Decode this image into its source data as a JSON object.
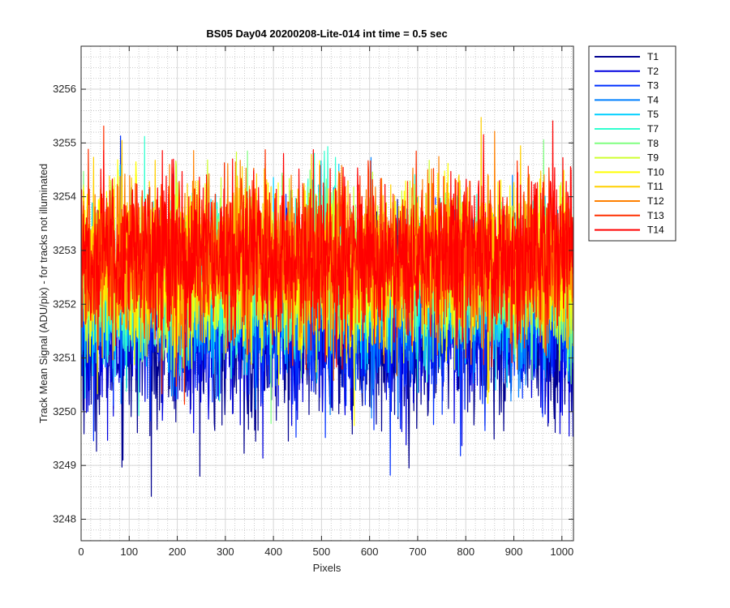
{
  "chart_data": {
    "type": "line",
    "title": "BS05 Day04 20200208-Lite-014 int time = 0.5 sec",
    "xlabel": "Pixels",
    "ylabel": "Track Mean Signal (ADU/pix) - for tracks not illuminated",
    "xlim": [
      0,
      1024
    ],
    "ylim": [
      3247.6,
      3256.8
    ],
    "xticks": [
      0,
      100,
      200,
      300,
      400,
      500,
      600,
      700,
      800,
      900,
      1000
    ],
    "yticks": [
      3248,
      3249,
      3250,
      3251,
      3252,
      3253,
      3254,
      3255,
      3256
    ],
    "grid": true,
    "minor_grid": true,
    "legend_position": "outside-top-right",
    "n_points_per_series": 1024,
    "series": [
      {
        "name": "T1",
        "color": "#00008F",
        "mean": 3251.4,
        "std": 0.85
      },
      {
        "name": "T2",
        "color": "#0000DF",
        "mean": 3251.6,
        "std": 0.8
      },
      {
        "name": "T3",
        "color": "#0030FF",
        "mean": 3251.8,
        "std": 0.75
      },
      {
        "name": "T4",
        "color": "#0080FF",
        "mean": 3252.0,
        "std": 0.72
      },
      {
        "name": "T5",
        "color": "#00CFFF",
        "mean": 3252.2,
        "std": 0.7
      },
      {
        "name": "T7",
        "color": "#30FFCF",
        "mean": 3252.4,
        "std": 0.7
      },
      {
        "name": "T8",
        "color": "#80FF80",
        "mean": 3252.5,
        "std": 0.7
      },
      {
        "name": "T9",
        "color": "#CFFF30",
        "mean": 3252.6,
        "std": 0.7
      },
      {
        "name": "T10",
        "color": "#FFFF00",
        "mean": 3252.7,
        "std": 0.72
      },
      {
        "name": "T11",
        "color": "#FFCF00",
        "mean": 3252.8,
        "std": 0.72
      },
      {
        "name": "T12",
        "color": "#FF8000",
        "mean": 3252.8,
        "std": 0.72
      },
      {
        "name": "T13",
        "color": "#FF3000",
        "mean": 3252.9,
        "std": 0.72
      },
      {
        "name": "T14",
        "color": "#FF0000",
        "mean": 3252.9,
        "std": 0.75
      }
    ]
  }
}
